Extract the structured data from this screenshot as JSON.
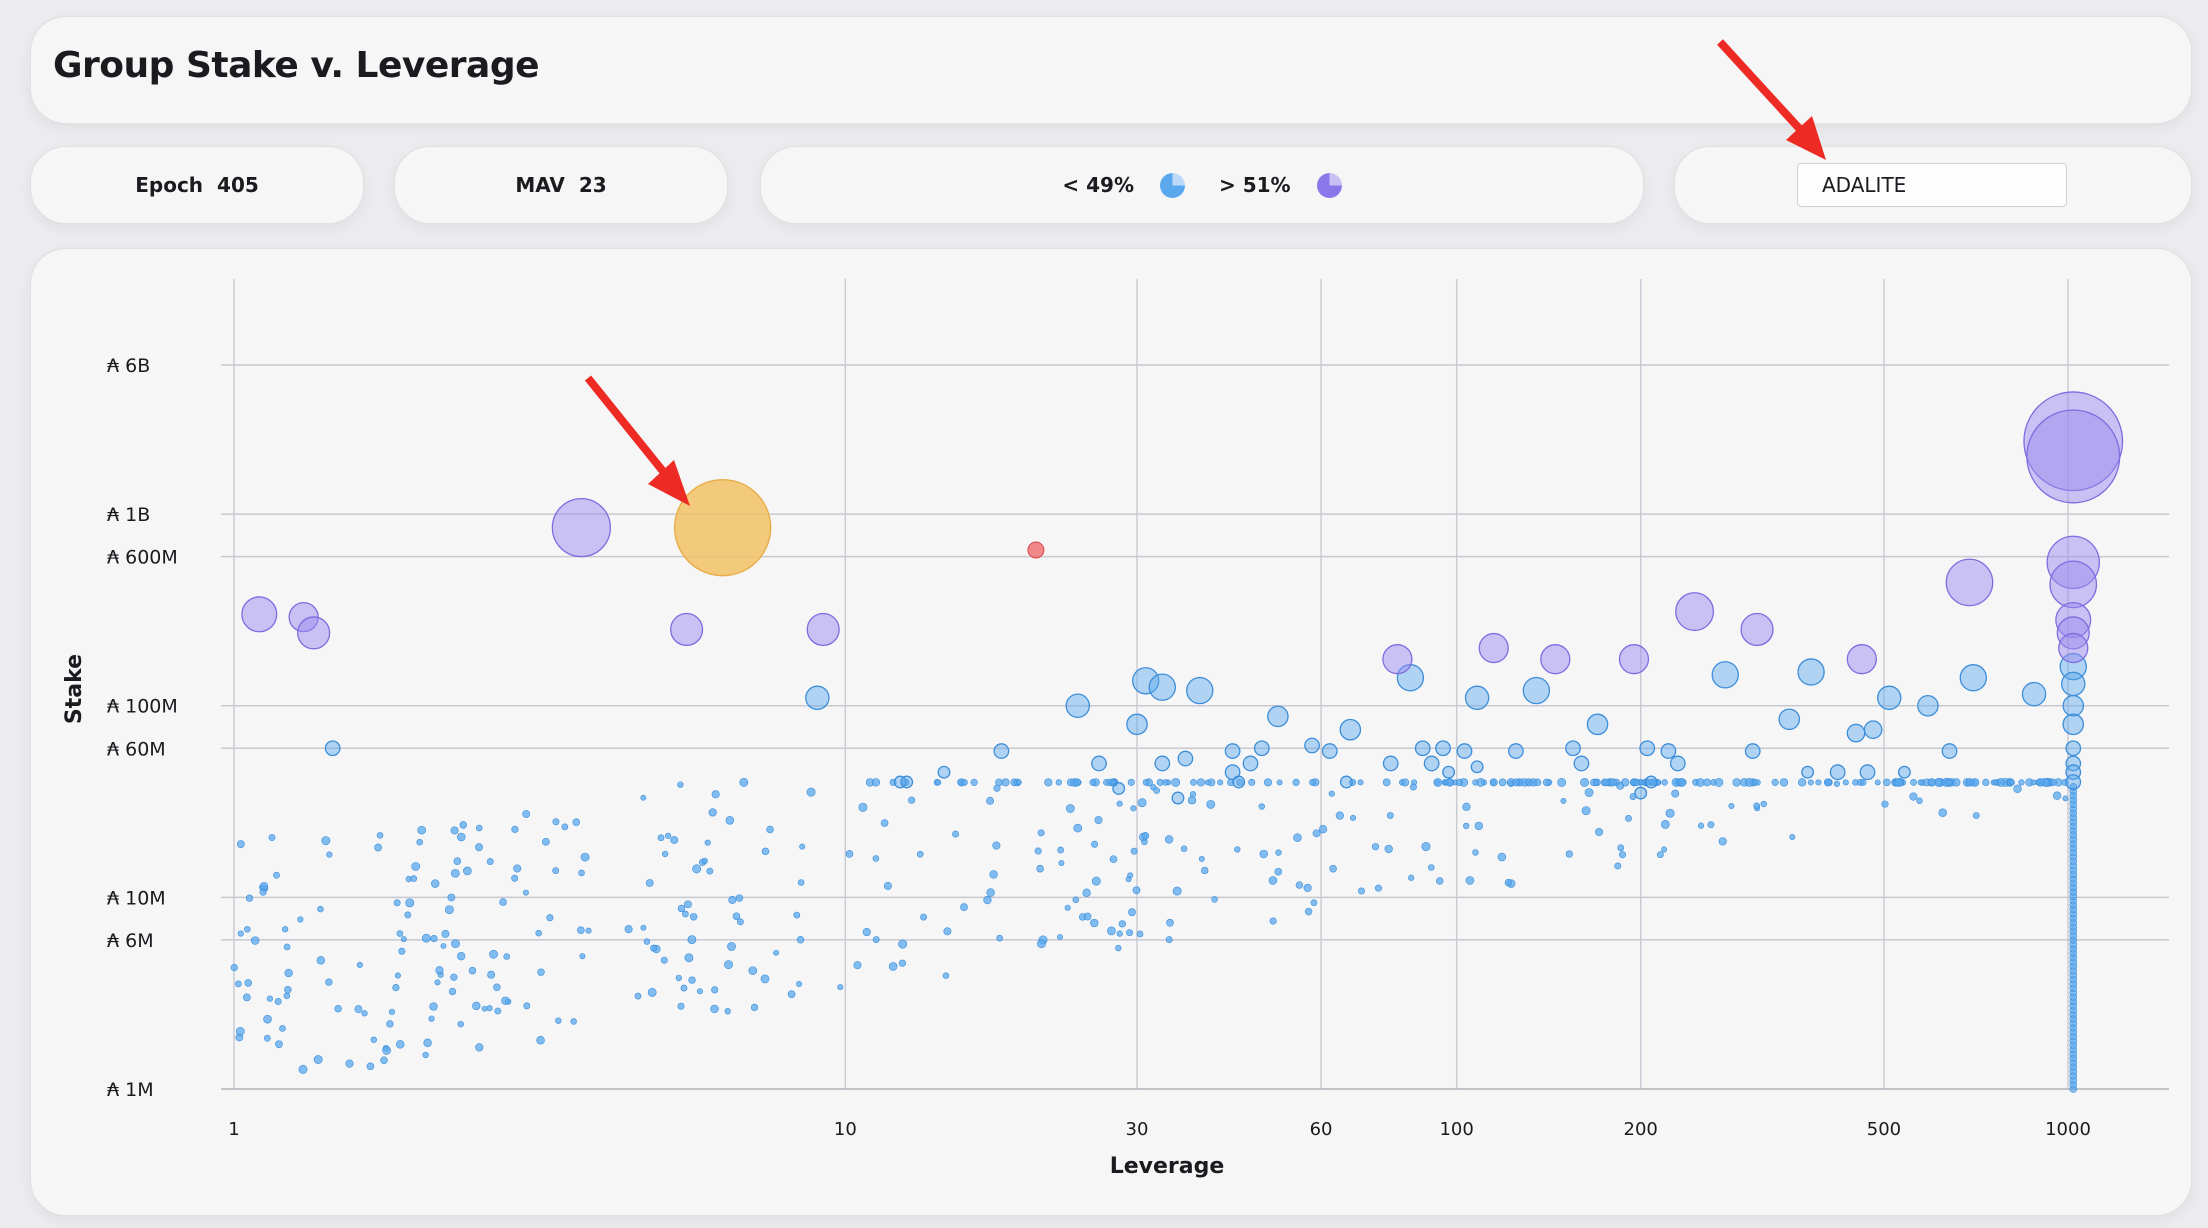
{
  "header": {
    "title": "Group Stake v. Leverage"
  },
  "stats": {
    "epoch_label": "Epoch",
    "epoch_value": "405",
    "mav_label": "MAV",
    "mav_value": "23",
    "share_low_label": "< 49%",
    "share_high_label": "> 51%"
  },
  "search": {
    "value": "ADALITE",
    "placeholder": ""
  },
  "colors": {
    "blue": "#5aa8ee",
    "purple": "#9b8cf0",
    "highlight": "#f2c266",
    "red": "#ef6b6b",
    "arrow": "#ee2a24"
  },
  "icons": [
    "pie-small-icon",
    "pie-large-icon",
    "arrow-icon"
  ],
  "chart_data": {
    "type": "scatter",
    "xlabel": "Leverage",
    "ylabel": "Stake",
    "x_scale": "log",
    "y_scale": "log",
    "xlim": [
      1,
      1100
    ],
    "ylim": [
      1000000,
      12000000000
    ],
    "grid": true,
    "x_ticks": [
      1,
      10,
      30,
      60,
      100,
      200,
      500,
      1000
    ],
    "x_tick_labels": [
      "1",
      "10",
      "30",
      "60",
      "100",
      "200",
      "500",
      "1000"
    ],
    "y_ticks": [
      1000000,
      6000000,
      10000000,
      60000000,
      100000000,
      600000000,
      1000000000,
      6000000000
    ],
    "y_tick_labels": [
      "₳ 1M",
      "₳ 6M",
      "₳ 10M",
      "₳ 60M",
      "₳ 100M",
      "₳ 600M",
      "₳ 1B",
      "₳ 6B"
    ],
    "highlighted_group": {
      "name": "ADALITE",
      "x": 6.3,
      "y": 850000000,
      "size": 24,
      "color": "#f2c266"
    },
    "series": [
      {
        "name": "> 51%",
        "color": "#9b8cf0",
        "points": [
          [
            1.1,
            300000000,
            12
          ],
          [
            1.3,
            290000000,
            10
          ],
          [
            1.35,
            240000000,
            11
          ],
          [
            3.7,
            850000000,
            20
          ],
          [
            5.5,
            250000000,
            11
          ],
          [
            9.2,
            250000000,
            11
          ],
          [
            80,
            175000000,
            10
          ],
          [
            115,
            200000000,
            10
          ],
          [
            145,
            175000000,
            10
          ],
          [
            195,
            175000000,
            10
          ],
          [
            245,
            310000000,
            13
          ],
          [
            310,
            250000000,
            11
          ],
          [
            460,
            175000000,
            10
          ],
          [
            690,
            440000000,
            16
          ],
          [
            1020,
            2400000000,
            34
          ],
          [
            1020,
            2000000000,
            32
          ],
          [
            1020,
            560000000,
            18
          ],
          [
            1020,
            430000000,
            16
          ],
          [
            1020,
            280000000,
            12
          ],
          [
            1020,
            240000000,
            11
          ],
          [
            1020,
            200000000,
            10
          ]
        ]
      },
      {
        "name": "< 49%",
        "color": "#5aa8ee",
        "points": [
          [
            9,
            110000000,
            8
          ],
          [
            31,
            135000000,
            9
          ],
          [
            33,
            125000000,
            9
          ],
          [
            38,
            120000000,
            9
          ],
          [
            24,
            100000000,
            8
          ],
          [
            30,
            80000000,
            7
          ],
          [
            51,
            88000000,
            7
          ],
          [
            67,
            75000000,
            7
          ],
          [
            84,
            140000000,
            9
          ],
          [
            108,
            110000000,
            8
          ],
          [
            135,
            120000000,
            9
          ],
          [
            170,
            80000000,
            7
          ],
          [
            275,
            145000000,
            9
          ],
          [
            350,
            85000000,
            7
          ],
          [
            510,
            110000000,
            8
          ],
          [
            590,
            100000000,
            7
          ],
          [
            880,
            115000000,
            8
          ],
          [
            700,
            140000000,
            9
          ],
          [
            380,
            150000000,
            9
          ],
          [
            1020,
            160000000,
            9
          ],
          [
            1020,
            130000000,
            8
          ],
          [
            1020,
            100000000,
            7
          ],
          [
            1020,
            80000000,
            7
          ],
          [
            1.45,
            60000000,
            5
          ],
          [
            18,
            58000000,
            5
          ],
          [
            43,
            58000000,
            5
          ],
          [
            48,
            60000000,
            5
          ],
          [
            58,
            62000000,
            5
          ],
          [
            62,
            58000000,
            5
          ],
          [
            88,
            60000000,
            5
          ],
          [
            95,
            60000000,
            5
          ],
          [
            103,
            58000000,
            5
          ],
          [
            125,
            58000000,
            5
          ],
          [
            155,
            60000000,
            5
          ],
          [
            205,
            60000000,
            5
          ],
          [
            222,
            58000000,
            5
          ],
          [
            305,
            58000000,
            5
          ],
          [
            450,
            72000000,
            6
          ],
          [
            480,
            75000000,
            6
          ],
          [
            640,
            58000000,
            5
          ],
          [
            1020,
            60000000,
            5
          ],
          [
            1020,
            50000000,
            5
          ],
          [
            1020,
            45000000,
            5
          ],
          [
            1020,
            40000000,
            5
          ],
          [
            14.5,
            45000000,
            4
          ],
          [
            12.3,
            40000000,
            4
          ],
          [
            12.6,
            40000000,
            4
          ],
          [
            26,
            50000000,
            5
          ],
          [
            33,
            50000000,
            5
          ],
          [
            36,
            53000000,
            5
          ],
          [
            43,
            45000000,
            5
          ],
          [
            46,
            50000000,
            5
          ],
          [
            66,
            40000000,
            4
          ],
          [
            78,
            50000000,
            5
          ],
          [
            91,
            50000000,
            5
          ],
          [
            97,
            45000000,
            4
          ],
          [
            108,
            48000000,
            4
          ],
          [
            160,
            50000000,
            5
          ],
          [
            200,
            35000000,
            4
          ],
          [
            208,
            40000000,
            4
          ],
          [
            230,
            50000000,
            5
          ],
          [
            375,
            45000000,
            4
          ],
          [
            420,
            45000000,
            5
          ],
          [
            470,
            45000000,
            5
          ],
          [
            540,
            45000000,
            4
          ],
          [
            28,
            37000000,
            4
          ],
          [
            35,
            33000000,
            4
          ],
          [
            44,
            40000000,
            4
          ]
        ]
      }
    ]
  }
}
